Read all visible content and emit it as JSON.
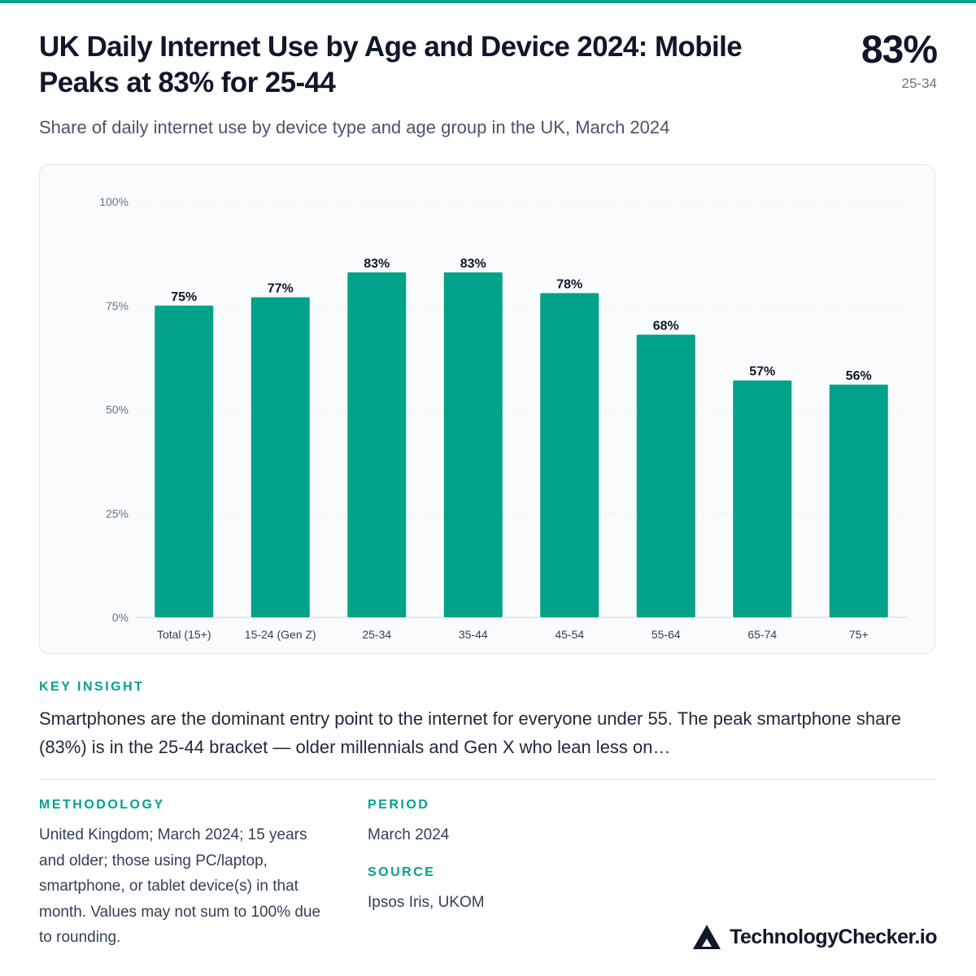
{
  "header": {
    "title": "UK Daily Internet Use by Age and Device 2024: Mobile Peaks at 83% for 25-44",
    "subtitle": "Share of daily internet use by device type and age group in the UK, March 2024",
    "kpi_value": "83%",
    "kpi_label": "25-34"
  },
  "chart_data": {
    "type": "bar",
    "categories": [
      "Total (15+)",
      "15-24 (Gen Z)",
      "25-34",
      "35-44",
      "45-54",
      "55-64",
      "65-74",
      "75+"
    ],
    "values": [
      75,
      77,
      83,
      83,
      78,
      68,
      57,
      56
    ],
    "data_labels": [
      "75%",
      "77%",
      "83%",
      "83%",
      "78%",
      "68%",
      "57%",
      "56%"
    ],
    "yticks": [
      "0%",
      "25%",
      "50%",
      "75%",
      "100%"
    ],
    "ytick_values": [
      0,
      25,
      50,
      75,
      100
    ],
    "ylim": [
      0,
      100
    ],
    "grid": true,
    "bar_color": "#00a28a"
  },
  "insight": {
    "label": "KEY INSIGHT",
    "text": "Smartphones are the dominant entry point to the internet for everyone under 55. The peak smartphone share (83%) is in the 25-44 bracket — older millennials and Gen X who lean less on…"
  },
  "methodology": {
    "label": "METHODOLOGY",
    "text": "United Kingdom; March 2024; 15 years and older; those using PC/laptop, smartphone, or tablet device(s) in that month. Values may not sum to 100% due to rounding."
  },
  "period": {
    "label": "PERIOD",
    "text": "March 2024"
  },
  "source": {
    "label": "SOURCE",
    "text": "Ipsos Iris, UKOM"
  },
  "brand": {
    "name": "TechnologyChecker.io",
    "logo_icon": "triangle-logo-icon"
  },
  "colors": {
    "accent": "#00a28a",
    "text": "#0f172a",
    "muted": "#64748b"
  }
}
